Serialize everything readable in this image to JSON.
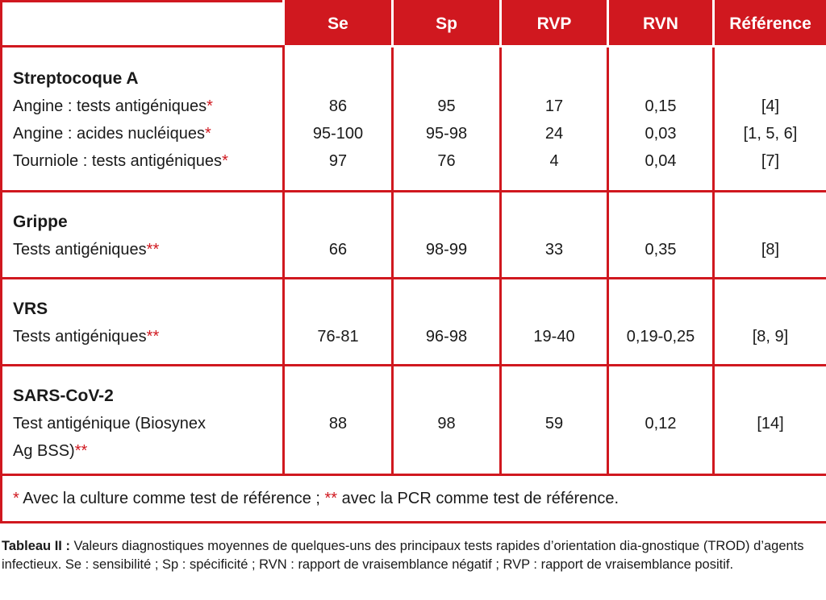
{
  "headers": [
    "Se",
    "Sp",
    "RVP",
    "RVN",
    "Référence"
  ],
  "groups": [
    {
      "title": "Streptocoque A",
      "rows": [
        {
          "label": "Angine : tests antigéniques",
          "mark": "*",
          "se": "86",
          "sp": "95",
          "rvp": "17",
          "rvn": "0,15",
          "ref": "[4]"
        },
        {
          "label": "Angine : acides nucléiques",
          "mark": "*",
          "se": "95-100",
          "sp": "95-98",
          "rvp": "24",
          "rvn": "0,03",
          "ref": "[1, 5, 6]"
        },
        {
          "label": "Tourniole : tests antigéniques",
          "mark": "*",
          "se": "97",
          "sp": "76",
          "rvp": "4",
          "rvn": "0,04",
          "ref": "[7]"
        }
      ]
    },
    {
      "title": "Grippe",
      "rows": [
        {
          "label": "Tests antigéniques",
          "mark": "**",
          "se": "66",
          "sp": "98-99",
          "rvp": "33",
          "rvn": "0,35",
          "ref": "[8]"
        }
      ]
    },
    {
      "title": "VRS",
      "rows": [
        {
          "label": "Tests antigéniques",
          "mark": "**",
          "se": "76-81",
          "sp": "96-98",
          "rvp": "19-40",
          "rvn": "0,19-0,25",
          "ref": "[8, 9]"
        }
      ]
    },
    {
      "title": "SARS-CoV-2",
      "rows": [
        {
          "label": "Test antigénique (Biosynex",
          "label2": "Ag BSS)",
          "mark": "**",
          "se": "88",
          "sp": "98",
          "rvp": "59",
          "rvn": "0,12",
          "ref": "[14]"
        }
      ]
    }
  ],
  "footnote": {
    "mark1": "*",
    "text1": " Avec la culture comme test de référence ; ",
    "mark2": "**",
    "text2": " avec la PCR comme test de référence."
  },
  "caption": {
    "label": "Tableau II :",
    "text": " Valeurs diagnostiques moyennes de quelques-uns des principaux tests rapides d’orientation dia-gnostique (TROD) d’agents infectieux. Se : sensibilité ; Sp : spécificité ; RVN : rapport de vraisemblance négatif ; RVP : rapport de vraisemblance positif."
  },
  "colors": {
    "accent": "#d0181f"
  }
}
